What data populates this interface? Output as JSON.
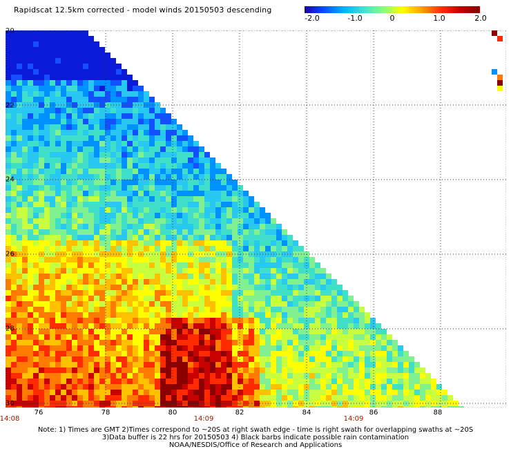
{
  "title": "Rapidscat 12.5km corrected - model winds 20150503 descending",
  "colorbar": {
    "labels": [
      "-2.0",
      "-1.0",
      "0",
      "1.0",
      "2.0"
    ],
    "stops": [
      "#1b00a0",
      "#0050ff",
      "#00b0ff",
      "#40e0d0",
      "#80ff80",
      "#ffff00",
      "#ffa000",
      "#ff3000",
      "#c00000",
      "#800000"
    ]
  },
  "axes": {
    "lat_labels": [
      "20",
      "22",
      "24",
      "26",
      "28",
      "30"
    ],
    "lon_labels": [
      "76",
      "78",
      "80",
      "82",
      "84",
      "86",
      "88"
    ]
  },
  "times": {
    "left": "14:08",
    "middle": "14:09",
    "right": "14:09"
  },
  "notes": {
    "line1": "Note: 1) Times are GMT 2)Times correspond to ~20S at right swath edge - time is right swath for overlapping swaths at ~20S",
    "line2": "3)Data buffer is 22 hrs for 20150503 4) Black barbs indicate possible rain contamination",
    "line3": "NOAA/NESDIS/Office of Research and Applications"
  }
}
